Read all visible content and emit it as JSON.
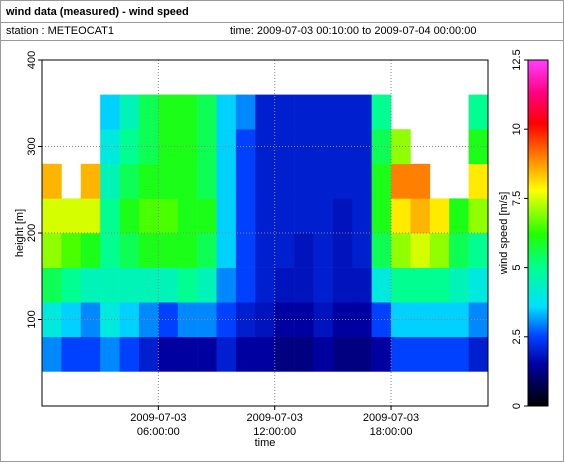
{
  "chart_data": {
    "type": "heatmap",
    "title": "wind data (measured) - wind speed",
    "station": "station : METEOCAT1",
    "time_range": "time: 2009-07-03 00:10:00 to 2009-07-04 00:00:00",
    "xlabel": "time",
    "ylabel": "height [m]",
    "colorbar_label": "wind speed [m/s]",
    "xlim": [
      0,
      23
    ],
    "xticks": [
      {
        "value": 6,
        "label": "2009-07-03 06:00:00"
      },
      {
        "value": 12,
        "label": "2009-07-03 12:00:00"
      },
      {
        "value": 18,
        "label": "2009-07-03 18:00:00"
      }
    ],
    "ylim": [
      0,
      400
    ],
    "yticks": [
      100,
      200,
      300,
      400
    ],
    "clim": [
      0,
      12.5
    ],
    "cticks": [
      0,
      2.5,
      5,
      7.5,
      10,
      12.5
    ],
    "colorscale": [
      [
        0,
        "#000000"
      ],
      [
        1.5,
        "#0000a0"
      ],
      [
        2.5,
        "#0040ff"
      ],
      [
        3.6,
        "#00e0ff"
      ],
      [
        5,
        "#00ff90"
      ],
      [
        6.2,
        "#20ff00"
      ],
      [
        7.8,
        "#ffff00"
      ],
      [
        9,
        "#ff8000"
      ],
      [
        10.2,
        "#ff0000"
      ],
      [
        11.3,
        "#ff0080"
      ],
      [
        12.5,
        "#ff40ff"
      ]
    ],
    "grid": true,
    "x": [
      0,
      1,
      2,
      3,
      4,
      5,
      6,
      7,
      8,
      9,
      10,
      11,
      12,
      13,
      14,
      15,
      16,
      17,
      18,
      19,
      20,
      21,
      22,
      23
    ],
    "y": [
      40,
      80,
      120,
      160,
      200,
      240,
      280,
      320,
      360
    ],
    "z": [
      [
        3,
        2.5,
        2.5,
        3,
        2.5,
        2,
        1.5,
        1.5,
        1.5,
        2,
        1.5,
        1.5,
        1.2,
        1.2,
        1.5,
        1.2,
        1.2,
        1.5,
        2.5,
        2.5,
        2.5,
        2.5,
        2
      ],
      [
        4,
        3.5,
        3,
        4,
        3.5,
        3,
        2.5,
        3,
        3,
        2.5,
        2,
        1.8,
        1.5,
        1.5,
        1.8,
        1.5,
        1.5,
        2.5,
        3.5,
        3.5,
        3.5,
        3.5,
        3
      ],
      [
        5.5,
        5,
        4.5,
        4.5,
        4.5,
        4.5,
        4.5,
        5,
        4.5,
        3,
        2.5,
        2,
        1.8,
        1.8,
        2,
        1.8,
        1.8,
        4,
        5,
        5,
        5,
        4.5,
        4
      ],
      [
        7,
        6.5,
        6,
        5,
        5.5,
        6,
        6,
        6,
        5.5,
        3.5,
        2.5,
        2,
        2,
        1.8,
        2,
        1.8,
        2,
        5.5,
        7,
        7.5,
        7,
        5.5,
        5
      ],
      [
        7.5,
        7.5,
        7.5,
        5,
        6,
        6.5,
        6.5,
        6,
        6,
        3.5,
        2.5,
        2,
        2,
        2,
        2,
        1.8,
        2,
        6,
        8,
        8.5,
        8,
        6,
        7
      ],
      [
        8.5,
        null,
        8.5,
        4.5,
        5.5,
        6,
        6,
        6,
        5.5,
        3.5,
        2.5,
        2,
        2,
        2,
        2,
        2,
        2,
        6,
        9,
        9,
        null,
        null,
        8
      ],
      [
        null,
        null,
        null,
        4,
        5,
        5.5,
        6,
        6,
        5.5,
        3.5,
        2.5,
        2,
        2,
        2,
        2,
        2,
        2,
        5.5,
        7,
        null,
        null,
        null,
        6
      ],
      [
        null,
        null,
        null,
        3.5,
        4.5,
        5.5,
        6,
        6,
        5.5,
        3.5,
        3,
        2,
        2,
        2,
        2,
        2,
        2,
        5,
        null,
        null,
        null,
        null,
        5
      ]
    ]
  }
}
